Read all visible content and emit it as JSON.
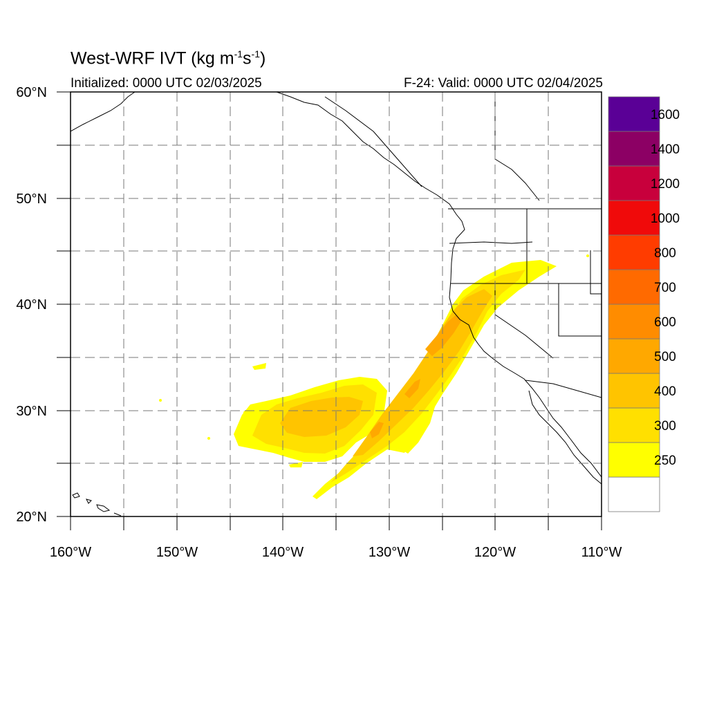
{
  "map": {
    "title_main": "West-WRF IVT (kg m",
    "title_sup1": "-1",
    "title_mid": "s",
    "title_sup2": "-1",
    "title_end": ")",
    "init_text": "Initialized: 0000 UTC 02/03/2025",
    "valid_text": "F-24: Valid: 0000 UTC 02/04/2025",
    "variable": "Integrated Vapor Transport",
    "units": "kg m-1 s-1",
    "lon_range": [
      -160,
      -110
    ],
    "lat_range": [
      20,
      60
    ],
    "lat_labels": [
      "60°N",
      "50°N",
      "40°N",
      "30°N",
      "20°N"
    ],
    "lon_labels": [
      "160°W",
      "150°W",
      "140°W",
      "130°W",
      "120°W",
      "110°W"
    ],
    "gridlines": "dashed every 5 degrees"
  },
  "colorbar": {
    "levels": [
      "250",
      "300",
      "400",
      "500",
      "600",
      "700",
      "800",
      "1000",
      "1200",
      "1400",
      "1600"
    ],
    "colors": [
      "#ffffff",
      "#ffff00",
      "#ffe000",
      "#ffc400",
      "#ffa800",
      "#ff8c00",
      "#ff6a00",
      "#ff3c00",
      "#f00a0a",
      "#c8003c",
      "#8c0064",
      "#5a0096"
    ]
  },
  "ivt": {
    "colors": {
      "c250": "#ffff00",
      "c300": "#ffe000",
      "c400": "#ffc400",
      "c500": "#ffa800"
    }
  }
}
